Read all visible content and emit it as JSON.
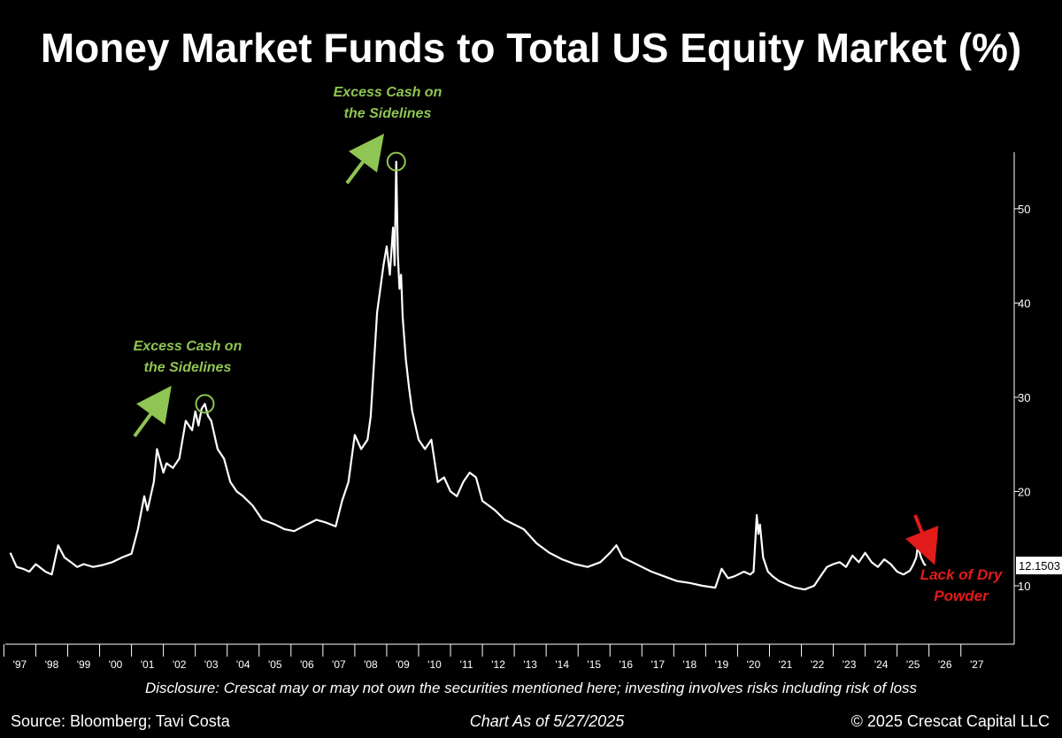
{
  "colors": {
    "background": "#000000",
    "line": "#ffffff",
    "annotation_green": "#8fc552",
    "annotation_red": "#e21b1b"
  },
  "chart_data": {
    "type": "line",
    "title": "Money Market Funds to Total US Equity Market (%)",
    "xlabel": "",
    "ylabel": "",
    "xlim": [
      1996.6,
      2027.7
    ],
    "ylim": [
      3.8,
      56
    ],
    "y_ticks": [
      10,
      20,
      30,
      40,
      50
    ],
    "x_ticks": [
      {
        "year": 1997,
        "label": "'97"
      },
      {
        "year": 1998,
        "label": "'98"
      },
      {
        "year": 1999,
        "label": "'99"
      },
      {
        "year": 2000,
        "label": "'00"
      },
      {
        "year": 2001,
        "label": "'01"
      },
      {
        "year": 2002,
        "label": "'02"
      },
      {
        "year": 2003,
        "label": "'03"
      },
      {
        "year": 2004,
        "label": "'04"
      },
      {
        "year": 2005,
        "label": "'05"
      },
      {
        "year": 2006,
        "label": "'06"
      },
      {
        "year": 2007,
        "label": "'07"
      },
      {
        "year": 2008,
        "label": "'08"
      },
      {
        "year": 2009,
        "label": "'09"
      },
      {
        "year": 2010,
        "label": "'10"
      },
      {
        "year": 2011,
        "label": "'11"
      },
      {
        "year": 2012,
        "label": "'12"
      },
      {
        "year": 2013,
        "label": "'13"
      },
      {
        "year": 2014,
        "label": "'14"
      },
      {
        "year": 2015,
        "label": "'15"
      },
      {
        "year": 2016,
        "label": "'16"
      },
      {
        "year": 2017,
        "label": "'17"
      },
      {
        "year": 2018,
        "label": "'18"
      },
      {
        "year": 2019,
        "label": "'19"
      },
      {
        "year": 2020,
        "label": "'20"
      },
      {
        "year": 2021,
        "label": "'21"
      },
      {
        "year": 2022,
        "label": "'22"
      },
      {
        "year": 2023,
        "label": "'23"
      },
      {
        "year": 2024,
        "label": "'24"
      },
      {
        "year": 2025,
        "label": "'25"
      },
      {
        "year": 2026,
        "label": "'26"
      },
      {
        "year": 2027,
        "label": "'27"
      }
    ],
    "grid": false,
    "legend": "none",
    "series": [
      {
        "name": "",
        "x": [
          1996.7,
          1996.9,
          1997.1,
          1997.3,
          1997.5,
          1997.8,
          1998.0,
          1998.2,
          1998.4,
          1998.6,
          1998.8,
          1999.0,
          1999.3,
          1999.6,
          1999.9,
          2000.2,
          2000.5,
          2000.7,
          2000.9,
          2001.0,
          2001.2,
          2001.3,
          2001.5,
          2001.6,
          2001.8,
          2002.0,
          2002.2,
          2002.4,
          2002.5,
          2002.6,
          2002.7,
          2002.8,
          2002.9,
          2003.0,
          2003.2,
          2003.4,
          2003.6,
          2003.8,
          2004.0,
          2004.3,
          2004.6,
          2005.0,
          2005.3,
          2005.6,
          2006.0,
          2006.3,
          2006.6,
          2006.9,
          2007.1,
          2007.3,
          2007.5,
          2007.7,
          2007.9,
          2008.0,
          2008.2,
          2008.4,
          2008.5,
          2008.6,
          2008.7,
          2008.75,
          2008.8,
          2008.85,
          2008.9,
          2008.95,
          2009.0,
          2009.1,
          2009.2,
          2009.3,
          2009.5,
          2009.7,
          2009.9,
          2010.1,
          2010.3,
          2010.5,
          2010.7,
          2010.9,
          2011.1,
          2011.3,
          2011.5,
          2011.7,
          2011.9,
          2012.2,
          2012.5,
          2012.8,
          2013.2,
          2013.6,
          2014.0,
          2014.4,
          2014.8,
          2015.2,
          2015.5,
          2015.7,
          2015.9,
          2016.2,
          2016.5,
          2016.8,
          2017.2,
          2017.6,
          2018.0,
          2018.4,
          2018.8,
          2019.0,
          2019.2,
          2019.4,
          2019.7,
          2019.9,
          2020.0,
          2020.1,
          2020.15,
          2020.2,
          2020.3,
          2020.45,
          2020.6,
          2020.8,
          2021.0,
          2021.3,
          2021.6,
          2021.9,
          2022.1,
          2022.3,
          2022.5,
          2022.7,
          2022.9,
          2023.1,
          2023.3,
          2023.5,
          2023.7,
          2023.9,
          2024.1,
          2024.3,
          2024.5,
          2024.7,
          2024.9,
          2025.0,
          2025.1,
          2025.15,
          2025.25,
          2025.35,
          2025.4
        ],
        "values": [
          13.5,
          12.0,
          11.8,
          11.5,
          12.3,
          11.5,
          11.2,
          14.3,
          13.0,
          12.5,
          12.0,
          12.3,
          12.0,
          12.2,
          12.5,
          13.0,
          13.4,
          16.0,
          19.5,
          18.0,
          21.0,
          24.5,
          22.0,
          23.0,
          22.5,
          23.5,
          27.5,
          26.5,
          28.5,
          27.0,
          28.8,
          29.3,
          28.0,
          27.5,
          24.5,
          23.5,
          21.0,
          20.0,
          19.5,
          18.5,
          17.0,
          16.5,
          16.0,
          15.8,
          16.5,
          17.0,
          16.7,
          16.3,
          19.0,
          21.0,
          26.0,
          24.5,
          25.5,
          28.0,
          39.0,
          44.0,
          46.0,
          43.0,
          48.0,
          44.0,
          55.0,
          45.0,
          41.5,
          43.0,
          38.5,
          34.0,
          31.0,
          28.5,
          25.5,
          24.5,
          25.5,
          21.0,
          21.5,
          20.0,
          19.5,
          21.0,
          22.0,
          21.5,
          19.0,
          18.5,
          18.0,
          17.0,
          16.5,
          16.0,
          14.5,
          13.5,
          12.8,
          12.3,
          12.0,
          12.5,
          13.5,
          14.3,
          13.0,
          12.5,
          12.0,
          11.5,
          11.0,
          10.5,
          10.3,
          10.0,
          9.8,
          11.8,
          10.8,
          11.0,
          11.5,
          11.2,
          11.5,
          17.5,
          15.5,
          16.5,
          13.0,
          11.5,
          11.0,
          10.5,
          10.2,
          9.8,
          9.6,
          10.0,
          11.0,
          12.0,
          12.3,
          12.5,
          12.0,
          13.2,
          12.5,
          13.5,
          12.5,
          12.0,
          12.8,
          12.3,
          11.5,
          11.2,
          11.6,
          12.2,
          13.0,
          14.2,
          13.0,
          12.3,
          12.15
        ]
      }
    ],
    "current_value_label": "12.1503",
    "last_value": 12.15,
    "annotations": [
      {
        "text": [
          "Excess Cash on",
          "the Sidelines"
        ],
        "marker_x": 2002.8,
        "marker_y": 29.3
      },
      {
        "text": [
          "Excess Cash on",
          "the Sidelines"
        ],
        "marker_x": 2008.8,
        "marker_y": 55.0
      },
      {
        "text": [
          "Lack of Dry",
          "Powder"
        ]
      }
    ]
  },
  "footer": {
    "disclosure": "Disclosure: Crescat may or may not own the securities mentioned here; investing involves risks including risk of loss",
    "source": "Source: Bloomberg; Tavi Costa",
    "as_of": "Chart As of 5/27/2025",
    "copyright": "© 2025 Crescat Capital LLC"
  }
}
